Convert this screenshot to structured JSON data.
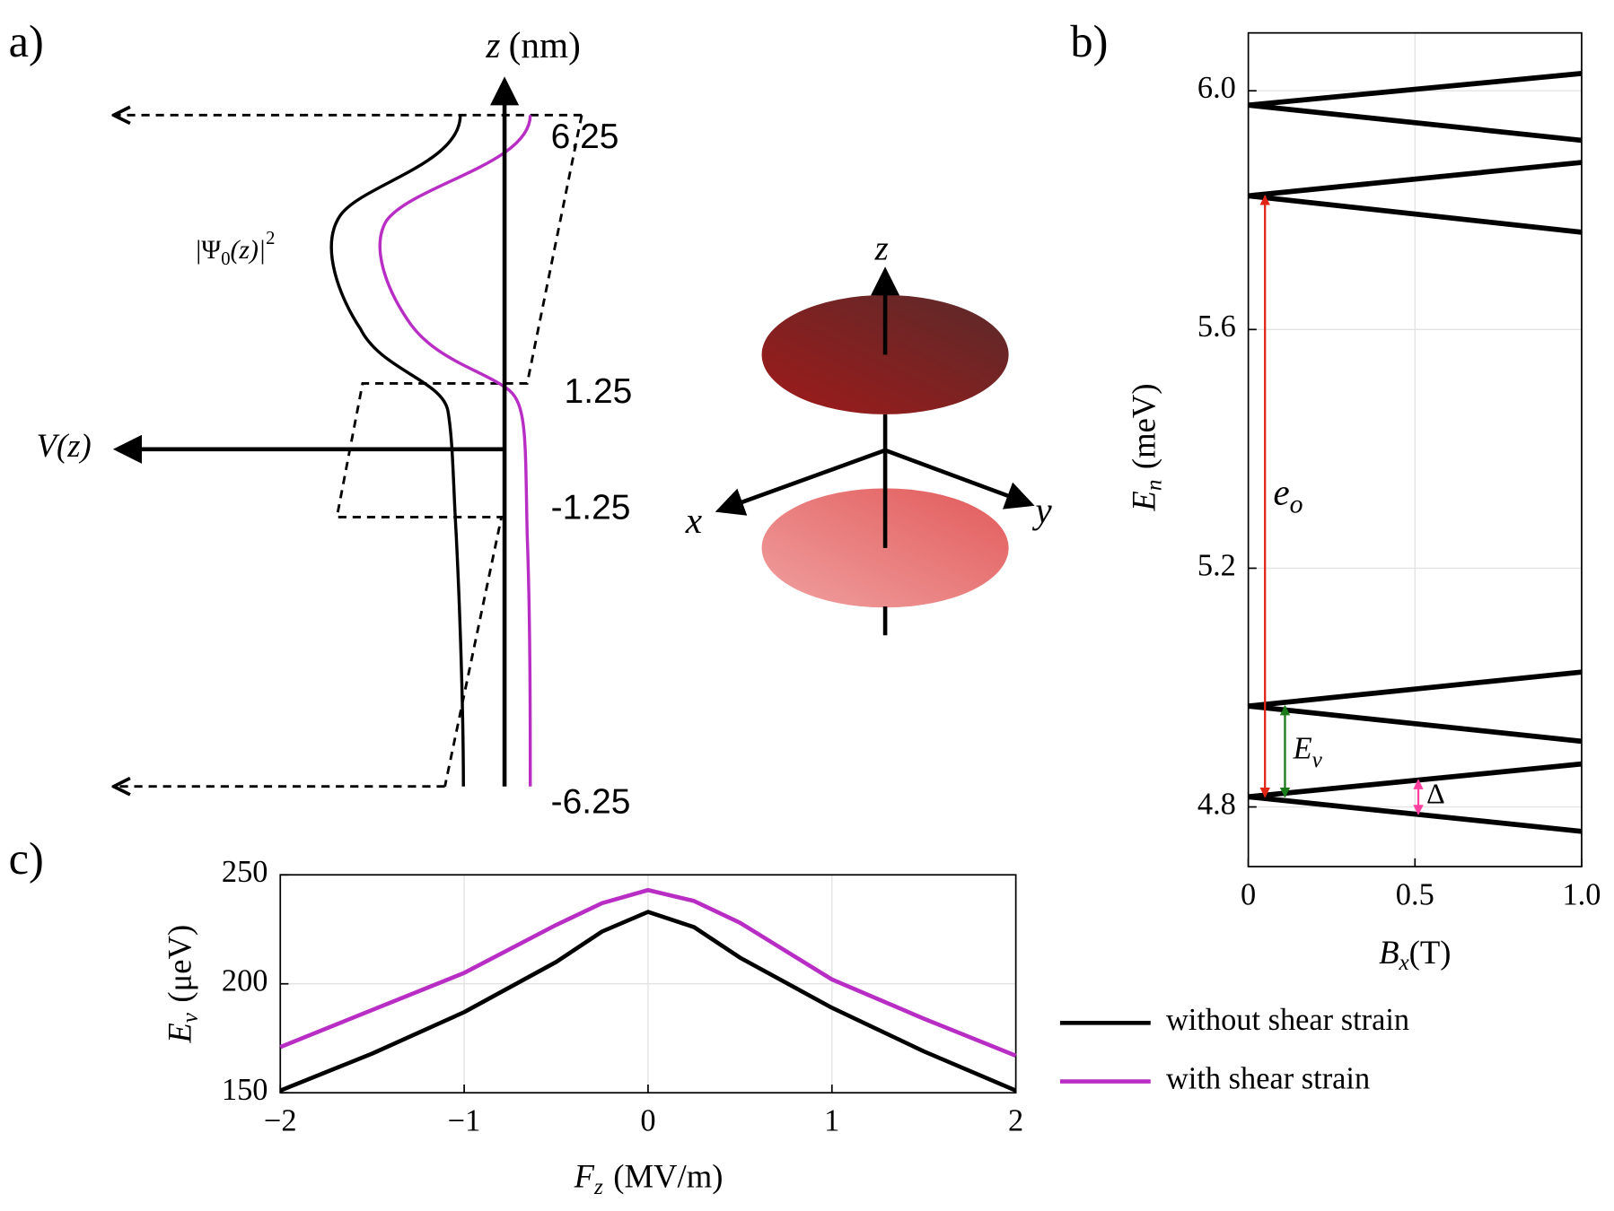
{
  "panels": {
    "a": "a)",
    "b": "b)",
    "c": "c)"
  },
  "diagram": {
    "z_axis": {
      "symbol": "z",
      "unit": "(nm)"
    },
    "v_axis": "V(z)",
    "wavefunction": {
      "prefix": "|Ψ",
      "subscript": "0",
      "middle": "(z)|",
      "power": "2"
    },
    "z_ticks": [
      "6.25",
      "1.25",
      "-1.25",
      "-6.25"
    ],
    "axes3d": {
      "x": "x",
      "y": "y",
      "z": "z"
    }
  },
  "chart_data": [
    {
      "type": "line",
      "x_label": {
        "symbol": "B",
        "subscript": "x",
        "unit": "(T)"
      },
      "y_label": {
        "symbol": "E",
        "subscript": "n",
        "unit": "(meV)"
      },
      "x": [
        0,
        1
      ],
      "series": [
        {
          "color": "#000000",
          "values": [
            5.976,
            6.029
          ]
        },
        {
          "color": "#000000",
          "values": [
            5.976,
            5.917
          ]
        },
        {
          "color": "#000000",
          "values": [
            5.824,
            5.88
          ]
        },
        {
          "color": "#000000",
          "values": [
            5.824,
            5.763
          ]
        },
        {
          "color": "#000000",
          "values": [
            4.969,
            5.026
          ]
        },
        {
          "color": "#000000",
          "values": [
            4.969,
            4.91
          ]
        },
        {
          "color": "#000000",
          "values": [
            4.817,
            4.872
          ]
        },
        {
          "color": "#000000",
          "values": [
            4.817,
            4.759
          ]
        }
      ],
      "annotations": [
        {
          "label": "e",
          "subscript": "o",
          "color": "#e02415",
          "text_color": "#b0140e",
          "x": 0.05,
          "from": 4.817,
          "to": 5.824
        },
        {
          "label": "E",
          "subscript": "v",
          "color": "#1a7a1a",
          "text_color": "#1a8a1a",
          "x": 0.11,
          "from": 4.817,
          "to": 4.969
        },
        {
          "label": "Δ",
          "color": "#ff3fa0",
          "text_color": "#ff3fa0",
          "x": 0.51,
          "from": 4.788,
          "to": 4.845
        }
      ],
      "xlim": [
        0,
        1
      ],
      "ylim": [
        4.7,
        6.097
      ],
      "xticks": [
        0,
        0.5,
        {
          "value": 1,
          "label": "1.0"
        }
      ],
      "yticks": [
        4.8,
        5.2,
        5.6,
        {
          "value": 6,
          "label": "6.0"
        }
      ],
      "grid": true
    },
    {
      "type": "line",
      "x_label": {
        "symbol": "F",
        "subscript": "z",
        "unit": "(MV/m)"
      },
      "y_label": {
        "symbol": "E",
        "subscript": "v",
        "unit": "(μeV)"
      },
      "x": [
        -2,
        -1.5,
        -1,
        -0.5,
        -0.25,
        0,
        0.25,
        0.5,
        1,
        1.5,
        2
      ],
      "series": [
        {
          "name": "without shear strain",
          "color": "#000000",
          "values": [
            151,
            168,
            187,
            210,
            224,
            233,
            226,
            212,
            189,
            169,
            151
          ]
        },
        {
          "name": "with shear strain",
          "color": "#b82ec4",
          "values": [
            171,
            188,
            205,
            227,
            237,
            243,
            238,
            228,
            202,
            184,
            167
          ]
        }
      ],
      "xlim": [
        -2,
        2
      ],
      "ylim": [
        150,
        250
      ],
      "xticks": [
        {
          "value": -2,
          "label": "−2"
        },
        {
          "value": -1,
          "label": "−1"
        },
        0,
        1,
        2
      ],
      "yticks": [
        150,
        200,
        250
      ],
      "grid": true
    }
  ]
}
